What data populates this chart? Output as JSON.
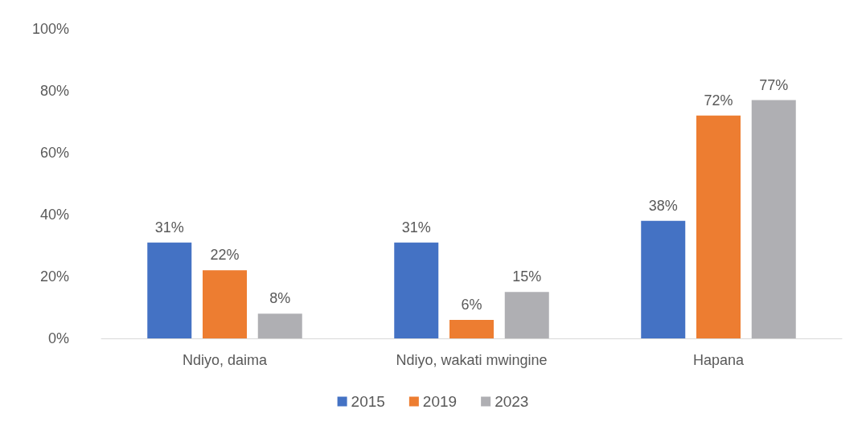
{
  "chart_data": {
    "type": "bar",
    "categories": [
      "Ndiyo, daima",
      "Ndiyo, wakati mwingine",
      "Hapana"
    ],
    "series": [
      {
        "name": "2015",
        "color": "#4472c4",
        "values": [
          31,
          31,
          38
        ],
        "value_labels": [
          "31%",
          "31%",
          "38%"
        ]
      },
      {
        "name": "2019",
        "color": "#ed7d31",
        "values": [
          22,
          6,
          72
        ],
        "value_labels": [
          "22%",
          "6%",
          "72%"
        ]
      },
      {
        "name": "2023",
        "color": "#afafb3",
        "values": [
          8,
          15,
          77
        ],
        "value_labels": [
          "8%",
          "15%",
          "77%"
        ]
      }
    ],
    "ylim": [
      0,
      100
    ],
    "yticks": [
      {
        "value": 0,
        "label": "0%"
      },
      {
        "value": 20,
        "label": "20%"
      },
      {
        "value": 40,
        "label": "40%"
      },
      {
        "value": 60,
        "label": "60%"
      },
      {
        "value": 80,
        "label": "80%"
      },
      {
        "value": 100,
        "label": "100%"
      }
    ],
    "grid": false,
    "legend": "bottom"
  }
}
